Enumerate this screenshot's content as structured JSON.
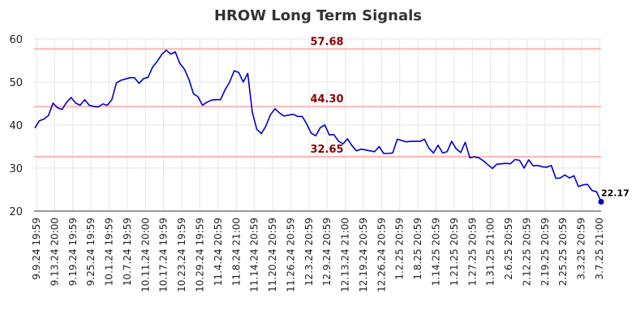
{
  "chart_data": {
    "type": "line",
    "title": "HROW Long Term Signals",
    "ylim": [
      20,
      60
    ],
    "yticks": [
      20,
      30,
      40,
      50,
      60
    ],
    "grid": true,
    "x_tick_labels": [
      "9.9.24 19:59",
      "9.13.24 20:00",
      "9.19.24 19:59",
      "9.25.24 19:59",
      "10.1.24 19:59",
      "10.7.24 19:59",
      "10.11.24 20:00",
      "10.17.24 19:59",
      "10.23.24 19:59",
      "10.29.24 19:59",
      "11.4.24 20:59",
      "11.8.24 21:00",
      "11.14.24 20:59",
      "11.20.24 20:59",
      "11.26.24 20:59",
      "12.3.24 20:59",
      "12.9.24 20:59",
      "12.13.24 21:00",
      "12.19.24 20:59",
      "12.26.24 20:59",
      "1.2.25 20:59",
      "1.8.25 20:59",
      "1.14.25 20:59",
      "1.21.25 20:59",
      "1.27.25 20:59",
      "1.31.25 21:00",
      "2.6.25 20:59",
      "2.12.25 20:59",
      "2.19.25 20:59",
      "2.25.25 20:59",
      "3.3.25 20:59",
      "3.7.25 21:00"
    ],
    "levels": [
      {
        "value": 57.68,
        "label": "57.68",
        "color": "#ffb6b6"
      },
      {
        "value": 44.3,
        "label": "44.30",
        "color": "#ffb6b6"
      },
      {
        "value": 32.65,
        "label": "32.65",
        "color": "#ffb6b6"
      }
    ],
    "series": [
      {
        "color": "#0000cc",
        "values": [
          39.3,
          41.0,
          41.4,
          42.2,
          45.1,
          44.0,
          43.6,
          45.3,
          46.4,
          45.1,
          44.6,
          45.9,
          44.6,
          44.3,
          44.2,
          44.9,
          44.6,
          45.9,
          49.8,
          50.4,
          50.7,
          51.0,
          51.0,
          49.7,
          50.8,
          51.1,
          53.5,
          54.8,
          56.4,
          57.4,
          56.5,
          57.0,
          54.3,
          53.0,
          50.6,
          47.3,
          46.6,
          44.6,
          45.3,
          45.8,
          45.9,
          45.9,
          48.2,
          50.0,
          52.6,
          52.2,
          50.0,
          52.0,
          43.0,
          39.0,
          38.0,
          39.8,
          42.4,
          43.8,
          42.8,
          42.1,
          42.3,
          42.5,
          42.0,
          42.0,
          40.3,
          38.1,
          37.5,
          39.4,
          40.0,
          37.7,
          37.8,
          36.3,
          35.6,
          36.8,
          35.2,
          34.0,
          34.4,
          34.2,
          34.0,
          33.8,
          35.0,
          33.4,
          33.4,
          33.5,
          36.7,
          36.4,
          36.1,
          36.2,
          36.2,
          36.2,
          36.7,
          34.6,
          33.5,
          35.3,
          33.5,
          33.8,
          36.2,
          34.5,
          33.6,
          36.0,
          32.4,
          32.6,
          32.4,
          31.7,
          30.8,
          29.9,
          30.9,
          31.0,
          31.1,
          31.0,
          32.0,
          31.8,
          30.0,
          31.9,
          30.5,
          30.6,
          30.3,
          30.2,
          30.6,
          27.6,
          27.7,
          28.4,
          27.7,
          28.2,
          25.7,
          26.1,
          26.2,
          24.8,
          24.5,
          22.17
        ]
      }
    ],
    "last_value_label": "22.17"
  }
}
